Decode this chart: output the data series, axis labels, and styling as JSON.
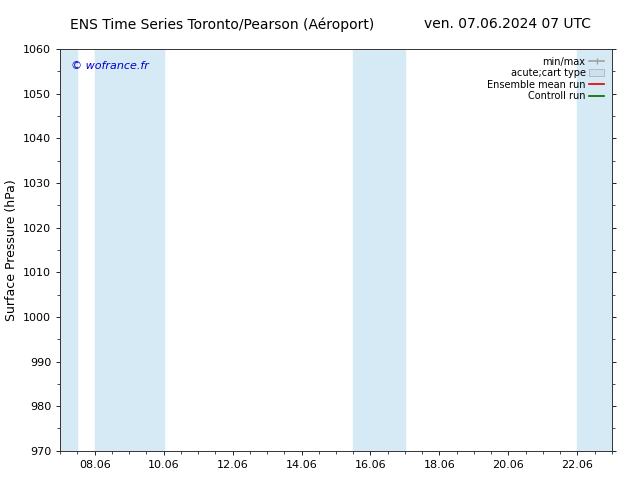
{
  "title_left": "ENS Time Series Toronto/Pearson (Aéroport)",
  "title_right": "ven. 07.06.2024 07 UTC",
  "ylabel": "Surface Pressure (hPa)",
  "ylim": [
    970,
    1060
  ],
  "yticks": [
    970,
    980,
    990,
    1000,
    1010,
    1020,
    1030,
    1040,
    1050,
    1060
  ],
  "x_tick_labels": [
    "08.06",
    "10.06",
    "12.06",
    "14.06",
    "16.06",
    "18.06",
    "20.06",
    "22.06"
  ],
  "x_tick_positions": [
    1,
    3,
    5,
    7,
    9,
    11,
    13,
    15
  ],
  "xlim": [
    0,
    16
  ],
  "watermark": "© wofrance.fr",
  "band_color": "#d6eaf5",
  "background_color": "#ffffff",
  "shaded_intervals": [
    [
      0,
      0.5
    ],
    [
      1,
      3
    ],
    [
      8.5,
      9.5
    ],
    [
      9.5,
      10
    ],
    [
      15,
      16
    ]
  ],
  "legend_entries": [
    "min/max",
    "acute;cart type",
    "Ensemble mean run",
    "Controll run"
  ],
  "legend_handle_color_1": "#a0a0a0",
  "legend_handle_color_2": "#cce0f0",
  "mean_run_color": "#dd0000",
  "control_run_color": "#006600",
  "title_fontsize": 10,
  "ylabel_fontsize": 9,
  "tick_fontsize": 8,
  "legend_fontsize": 7,
  "watermark_color": "#0000cc"
}
